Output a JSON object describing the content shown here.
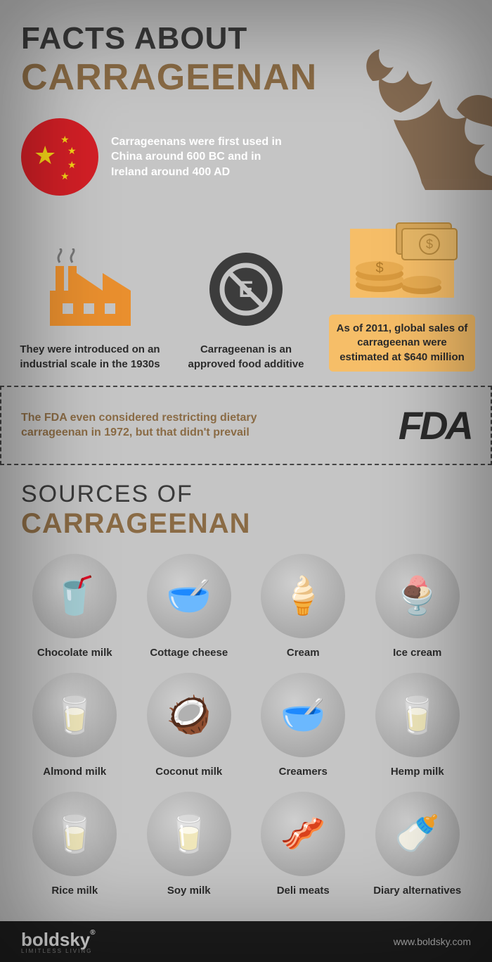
{
  "header": {
    "line1": "FACTS ABOUT",
    "line2": "CARRAGEENAN",
    "line2_color": "#8a6b45"
  },
  "flag_fact": "Carrageenans were first used in China around 600 BC and in Ireland around 400 AD",
  "facts": [
    {
      "caption": "They were introduced on an industrial scale in the 1930s"
    },
    {
      "caption": "Carrageenan is an approved food additive"
    },
    {
      "caption": "As of 2011, global sales of carrageenan were estimated at $640 million"
    }
  ],
  "fda": {
    "text": "The FDA even considered restricting dietary carrageenan in 1972, but that didn't prevail",
    "text_color": "#8a6b45",
    "logo": "FDA"
  },
  "sources": {
    "line1": "SOURCES OF",
    "line2": "CARRAGEENAN",
    "line2_color": "#8a6b45",
    "items": [
      {
        "label": "Chocolate milk",
        "glyph": "🥤"
      },
      {
        "label": "Cottage cheese",
        "glyph": "🥣"
      },
      {
        "label": "Cream",
        "glyph": "🍦"
      },
      {
        "label": "Ice cream",
        "glyph": "🍨"
      },
      {
        "label": "Almond milk",
        "glyph": "🥛"
      },
      {
        "label": "Coconut milk",
        "glyph": "🥥"
      },
      {
        "label": "Creamers",
        "glyph": "🥣"
      },
      {
        "label": "Hemp milk",
        "glyph": "🥛"
      },
      {
        "label": "Rice milk",
        "glyph": "🥛"
      },
      {
        "label": "Soy milk",
        "glyph": "🥛"
      },
      {
        "label": "Deli meats",
        "glyph": "🥓"
      },
      {
        "label": "Diary alternatives",
        "glyph": "🍼"
      }
    ]
  },
  "footer": {
    "brand": "boldsky",
    "sub": "LIMITLESS LIVING",
    "url": "www.boldsky.com"
  },
  "colors": {
    "accent": "#8a6b45",
    "orange": "#e98f2e",
    "card": "#f6be68",
    "red": "#d31f26"
  }
}
